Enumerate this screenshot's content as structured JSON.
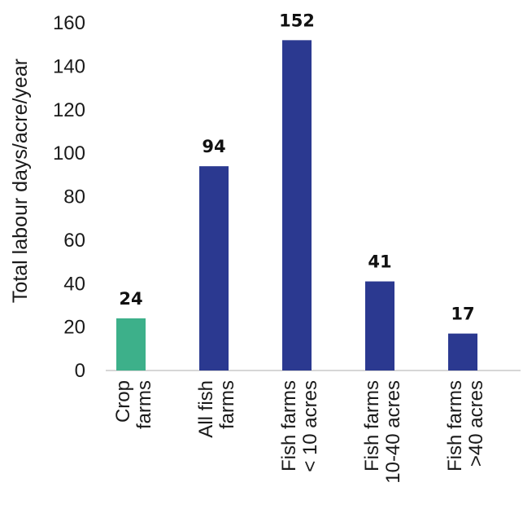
{
  "chart_data": {
    "type": "bar",
    "title": "",
    "xlabel": "",
    "ylabel": "Total labour days/acre/year",
    "ylim": [
      0,
      160
    ],
    "yticks": [
      0,
      20,
      40,
      60,
      80,
      100,
      120,
      140,
      160
    ],
    "grid": false,
    "categories": [
      [
        "Crop",
        "farms"
      ],
      [
        "All fish",
        "farms"
      ],
      [
        "Fish farms",
        "< 10 acres"
      ],
      [
        "Fish farms",
        "10-40 acres"
      ],
      [
        "Fish farms",
        ">40 acres"
      ]
    ],
    "values": [
      24,
      94,
      152,
      41,
      17
    ],
    "data_labels": [
      "24",
      "94",
      "152",
      "41",
      "17"
    ],
    "colors": [
      "#3db08a",
      "#2b3990",
      "#2b3990",
      "#2b3990",
      "#2b3990"
    ]
  }
}
